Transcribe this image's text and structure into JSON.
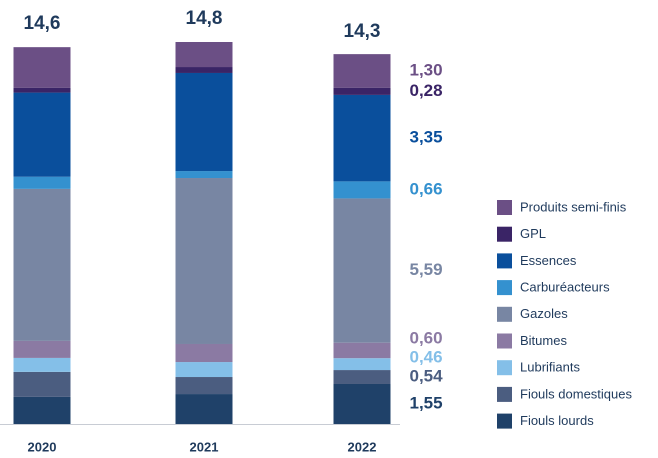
{
  "chart_data": {
    "type": "stacked_bar",
    "categories": [
      "2020",
      "2021",
      "2022"
    ],
    "totals": {
      "values": [
        14.6,
        14.8,
        14.3
      ],
      "value_labels": [
        "14,6",
        "14,8",
        "14,3"
      ]
    },
    "series": [
      {
        "name": "Fiouls lourds",
        "color": "#1f4169",
        "values": [
          1.05,
          1.16,
          1.55
        ],
        "value_labels": [
          null,
          null,
          "1,55"
        ]
      },
      {
        "name": "Fiouls domestiques",
        "color": "#4b5d80",
        "values": [
          0.97,
          0.66,
          0.54
        ],
        "value_labels": [
          null,
          null,
          "0,54"
        ]
      },
      {
        "name": "Lubrifiants",
        "color": "#84bfe8",
        "values": [
          0.54,
          0.58,
          0.46
        ],
        "value_labels": [
          null,
          null,
          "0,46"
        ]
      },
      {
        "name": "Bitumes",
        "color": "#8b7aa3",
        "values": [
          0.66,
          0.7,
          0.6
        ],
        "value_labels": [
          null,
          null,
          "0,60"
        ]
      },
      {
        "name": "Gazoles",
        "color": "#7886a3",
        "values": [
          5.89,
          6.43,
          5.59
        ],
        "value_labels": [
          null,
          null,
          "5,59"
        ]
      },
      {
        "name": "Carburéacteurs",
        "color": "#3491cf",
        "values": [
          0.47,
          0.27,
          0.66
        ],
        "value_labels": [
          null,
          null,
          "0,66"
        ]
      },
      {
        "name": "Essences",
        "color": "#0a4f9c",
        "values": [
          3.26,
          3.8,
          3.35
        ],
        "value_labels": [
          null,
          null,
          "3,35"
        ]
      },
      {
        "name": "GPL",
        "color": "#3a2466",
        "values": [
          0.19,
          0.23,
          0.28
        ],
        "value_labels": [
          null,
          null,
          "0,28"
        ]
      },
      {
        "name": "Produits semi-finis",
        "color": "#6b4f85",
        "values": [
          1.57,
          0.97,
          1.3
        ],
        "value_labels": [
          null,
          null,
          "1,30"
        ]
      }
    ],
    "legend": "right"
  }
}
